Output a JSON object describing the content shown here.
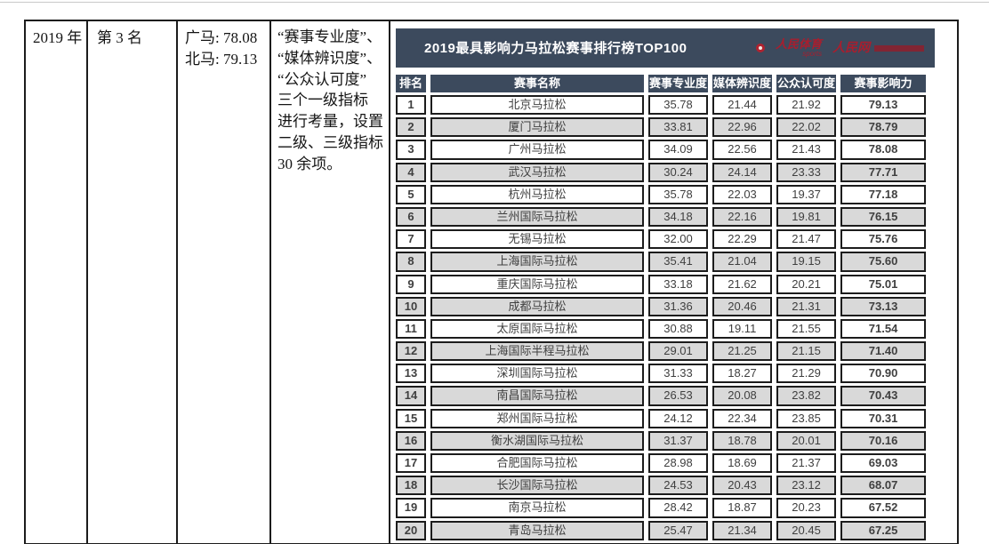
{
  "document": {
    "year": "2019 年",
    "rank": "第 3 名",
    "scores": [
      "广马: 78.08",
      "北马: 79.13"
    ],
    "description_lines": [
      "“赛事专业度”、",
      "“媒体辨识度”、",
      "“公众认可度”",
      "三个一级指标",
      "进行考量，设置",
      "二级、三级指标",
      "30 余项。"
    ]
  },
  "chart": {
    "title": "2019最具影响力马拉松赛事排行榜TOP100",
    "logos": {
      "sports_text": "人民体育",
      "sports_sub": "sports",
      "site_text": "人民网"
    },
    "columns": [
      "排名",
      "赛事名称",
      "赛事专业度",
      "媒体辨识度",
      "公众认可度",
      "赛事影响力"
    ],
    "rows": [
      [
        "1",
        "北京马拉松",
        "35.78",
        "21.44",
        "21.92",
        "79.13"
      ],
      [
        "2",
        "厦门马拉松",
        "33.81",
        "22.96",
        "22.02",
        "78.79"
      ],
      [
        "3",
        "广州马拉松",
        "34.09",
        "22.56",
        "21.43",
        "78.08"
      ],
      [
        "4",
        "武汉马拉松",
        "30.24",
        "24.14",
        "23.33",
        "77.71"
      ],
      [
        "5",
        "杭州马拉松",
        "35.78",
        "22.03",
        "19.37",
        "77.18"
      ],
      [
        "6",
        "兰州国际马拉松",
        "34.18",
        "22.16",
        "19.81",
        "76.15"
      ],
      [
        "7",
        "无锡马拉松",
        "32.00",
        "22.29",
        "21.47",
        "75.76"
      ],
      [
        "8",
        "上海国际马拉松",
        "35.41",
        "21.04",
        "19.15",
        "75.60"
      ],
      [
        "9",
        "重庆国际马拉松",
        "33.18",
        "21.62",
        "20.21",
        "75.01"
      ],
      [
        "10",
        "成都马拉松",
        "31.36",
        "20.46",
        "21.31",
        "73.13"
      ],
      [
        "11",
        "太原国际马拉松",
        "30.88",
        "19.11",
        "21.55",
        "71.54"
      ],
      [
        "12",
        "上海国际半程马拉松",
        "29.01",
        "21.25",
        "21.15",
        "71.40"
      ],
      [
        "13",
        "深圳国际马拉松",
        "31.33",
        "18.27",
        "21.29",
        "70.90"
      ],
      [
        "14",
        "南昌国际马拉松",
        "26.53",
        "20.08",
        "23.82",
        "70.43"
      ],
      [
        "15",
        "郑州国际马拉松",
        "24.12",
        "22.34",
        "23.85",
        "70.31"
      ],
      [
        "16",
        "衡水湖国际马拉松",
        "31.37",
        "18.78",
        "20.01",
        "70.16"
      ],
      [
        "17",
        "合肥国际马拉松",
        "28.98",
        "18.69",
        "21.37",
        "69.03"
      ],
      [
        "18",
        "长沙国际马拉松",
        "24.53",
        "20.43",
        "23.12",
        "68.07"
      ],
      [
        "19",
        "南京马拉松",
        "28.42",
        "18.87",
        "20.23",
        "67.52"
      ],
      [
        "20",
        "青岛马拉松",
        "25.47",
        "21.34",
        "20.45",
        "67.25"
      ]
    ],
    "colors": {
      "header_bg": "#3c4a5d",
      "stripe": "#d9d9d9",
      "rank_text": "#4b323a",
      "logo_red": "#a81e2e"
    }
  },
  "chart_data": {
    "type": "table",
    "title": "2019最具影响力马拉松赛事排行榜TOP100",
    "columns": [
      "排名",
      "赛事名称",
      "赛事专业度",
      "媒体辨识度",
      "公众认可度",
      "赛事影响力"
    ],
    "rows": [
      [
        1,
        "北京马拉松",
        35.78,
        21.44,
        21.92,
        79.13
      ],
      [
        2,
        "厦门马拉松",
        33.81,
        22.96,
        22.02,
        78.79
      ],
      [
        3,
        "广州马拉松",
        34.09,
        22.56,
        21.43,
        78.08
      ],
      [
        4,
        "武汉马拉松",
        30.24,
        24.14,
        23.33,
        77.71
      ],
      [
        5,
        "杭州马拉松",
        35.78,
        22.03,
        19.37,
        77.18
      ],
      [
        6,
        "兰州国际马拉松",
        34.18,
        22.16,
        19.81,
        76.15
      ],
      [
        7,
        "无锡马拉松",
        32.0,
        22.29,
        21.47,
        75.76
      ],
      [
        8,
        "上海国际马拉松",
        35.41,
        21.04,
        19.15,
        75.6
      ],
      [
        9,
        "重庆国际马拉松",
        33.18,
        21.62,
        20.21,
        75.01
      ],
      [
        10,
        "成都马拉松",
        31.36,
        20.46,
        21.31,
        73.13
      ],
      [
        11,
        "太原国际马拉松",
        30.88,
        19.11,
        21.55,
        71.54
      ],
      [
        12,
        "上海国际半程马拉松",
        29.01,
        21.25,
        21.15,
        71.4
      ],
      [
        13,
        "深圳国际马拉松",
        31.33,
        18.27,
        21.29,
        70.9
      ],
      [
        14,
        "南昌国际马拉松",
        26.53,
        20.08,
        23.82,
        70.43
      ],
      [
        15,
        "郑州国际马拉松",
        24.12,
        22.34,
        23.85,
        70.31
      ],
      [
        16,
        "衡水湖国际马拉松",
        31.37,
        18.78,
        20.01,
        70.16
      ],
      [
        17,
        "合肥国际马拉松",
        28.98,
        18.69,
        21.37,
        69.03
      ],
      [
        18,
        "长沙国际马拉松",
        24.53,
        20.43,
        23.12,
        68.07
      ],
      [
        19,
        "南京马拉松",
        28.42,
        18.87,
        20.23,
        67.52
      ],
      [
        20,
        "青岛马拉松",
        25.47,
        21.34,
        20.45,
        67.25
      ]
    ]
  }
}
